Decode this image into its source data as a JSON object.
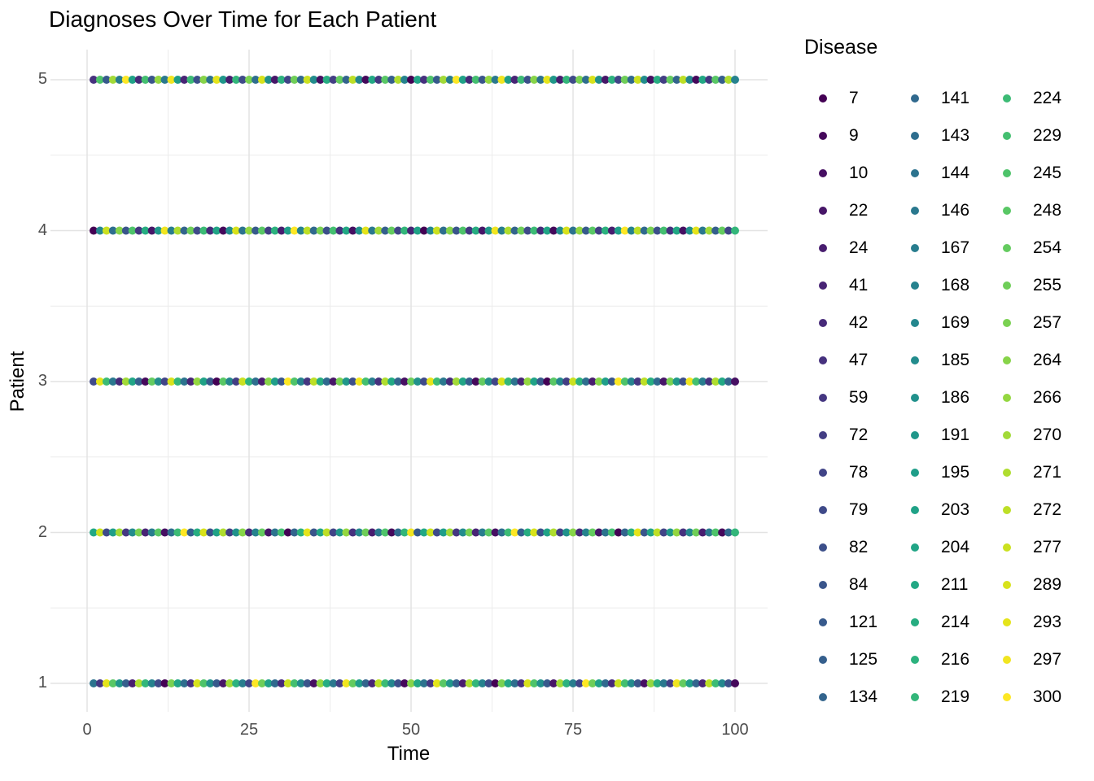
{
  "title": "Diagnoses Over Time for Each Patient",
  "axes": {
    "x": {
      "label": "Time",
      "tick_labels": [
        "0",
        "25",
        "50",
        "75",
        "100"
      ],
      "tick_values": [
        0,
        25,
        50,
        75,
        100
      ],
      "minor": [
        12.5,
        37.5,
        62.5,
        87.5
      ]
    },
    "y": {
      "label": "Patient",
      "tick_labels": [
        "5",
        "4",
        "3",
        "2",
        "1"
      ],
      "tick_values": [
        5,
        4,
        3,
        2,
        1
      ],
      "minor": [
        4.5,
        3.5,
        2.5,
        1.5
      ]
    }
  },
  "legend": {
    "title": "Disease",
    "items": [
      {
        "value": "7",
        "color": "#440154"
      },
      {
        "value": "9",
        "color": "#45085b"
      },
      {
        "value": "10",
        "color": "#460f62"
      },
      {
        "value": "22",
        "color": "#471668"
      },
      {
        "value": "24",
        "color": "#481d6f"
      },
      {
        "value": "41",
        "color": "#482475"
      },
      {
        "value": "42",
        "color": "#472a79"
      },
      {
        "value": "47",
        "color": "#46317e"
      },
      {
        "value": "59",
        "color": "#453781"
      },
      {
        "value": "72",
        "color": "#433e84"
      },
      {
        "value": "78",
        "color": "#414487"
      },
      {
        "value": "79",
        "color": "#3f4a89"
      },
      {
        "value": "82",
        "color": "#3c4f8a"
      },
      {
        "value": "84",
        "color": "#3a558b"
      },
      {
        "value": "121",
        "color": "#375a8c"
      },
      {
        "value": "125",
        "color": "#355f8d"
      },
      {
        "value": "134",
        "color": "#33648d"
      },
      {
        "value": "141",
        "color": "#30698e"
      },
      {
        "value": "143",
        "color": "#2e6e8e"
      },
      {
        "value": "144",
        "color": "#2c738e"
      },
      {
        "value": "146",
        "color": "#2a788e"
      },
      {
        "value": "167",
        "color": "#287d8e"
      },
      {
        "value": "168",
        "color": "#26828e"
      },
      {
        "value": "169",
        "color": "#24878e"
      },
      {
        "value": "185",
        "color": "#238c8d"
      },
      {
        "value": "186",
        "color": "#21918c"
      },
      {
        "value": "191",
        "color": "#20978a"
      },
      {
        "value": "195",
        "color": "#1f9e89"
      },
      {
        "value": "203",
        "color": "#20a287"
      },
      {
        "value": "204",
        "color": "#21a586"
      },
      {
        "value": "211",
        "color": "#22a884"
      },
      {
        "value": "214",
        "color": "#27ad81"
      },
      {
        "value": "216",
        "color": "#2cb27e"
      },
      {
        "value": "219",
        "color": "#33b67a"
      },
      {
        "value": "224",
        "color": "#3cbb75"
      },
      {
        "value": "229",
        "color": "#44bf70"
      },
      {
        "value": "245",
        "color": "#4ec36a"
      },
      {
        "value": "248",
        "color": "#59c765"
      },
      {
        "value": "254",
        "color": "#64cb5f"
      },
      {
        "value": "255",
        "color": "#6fce58"
      },
      {
        "value": "257",
        "color": "#7ad151"
      },
      {
        "value": "264",
        "color": "#87d449"
      },
      {
        "value": "266",
        "color": "#94d740"
      },
      {
        "value": "270",
        "color": "#a2da38"
      },
      {
        "value": "271",
        "color": "#afdd2f"
      },
      {
        "value": "272",
        "color": "#bddf26"
      },
      {
        "value": "277",
        "color": "#cbe120"
      },
      {
        "value": "289",
        "color": "#d8e21b"
      },
      {
        "value": "293",
        "color": "#e5e41b"
      },
      {
        "value": "297",
        "color": "#f1e520"
      },
      {
        "value": "300",
        "color": "#fde725"
      }
    ]
  },
  "chart_data": {
    "type": "scatter",
    "title": "Diagnoses Over Time for Each Patient",
    "xlabel": "Time",
    "ylabel": "Patient",
    "x_range": [
      1,
      100
    ],
    "x_step": 1,
    "x_ticks": [
      0,
      25,
      50,
      75,
      100
    ],
    "y_ticks": [
      1,
      2,
      3,
      4,
      5
    ],
    "xlim": [
      -4,
      105
    ],
    "ylim": [
      0.8,
      5.2
    ],
    "grid": true,
    "grid_color_major": "#e3e3e3",
    "grid_color_minor": "#ececec",
    "axis_text_color": "#4d4d4d",
    "point_radius": 5,
    "color_scale": "viridis-discrete",
    "legend_position": "right",
    "series": [
      {
        "patient": 5,
        "diseases": [
          47,
          245,
          121,
          270,
          167,
          300,
          203,
          42,
          229,
          84,
          266,
          146,
          297,
          195,
          41,
          224,
          82,
          264,
          144,
          293,
          191,
          24,
          219,
          79,
          257,
          143,
          289,
          186,
          22,
          216,
          78,
          255,
          141,
          277,
          185,
          10,
          214,
          72,
          254,
          134,
          272,
          169,
          9,
          211,
          59,
          248,
          125,
          271,
          168,
          7,
          204,
          47,
          245,
          121,
          270,
          167,
          300,
          203,
          42,
          229,
          84,
          266,
          146,
          297,
          195,
          41,
          224,
          82,
          264,
          144,
          293,
          191,
          24,
          219,
          79,
          257,
          143,
          289,
          186,
          22,
          216,
          78,
          255,
          141,
          277,
          185,
          10,
          214,
          72,
          254,
          134,
          272,
          169,
          9,
          211,
          59,
          248,
          125,
          271,
          168
        ]
      },
      {
        "patient": 4,
        "diseases": [
          7,
          169,
          277,
          143,
          264,
          84,
          245,
          59,
          214,
          22,
          191,
          297,
          167,
          271,
          134,
          255,
          79,
          224,
          42,
          204,
          9,
          185,
          289,
          144,
          266,
          121,
          248,
          72,
          216,
          24,
          195,
          300,
          168,
          272,
          141,
          257,
          82,
          229,
          47,
          211,
          10,
          186,
          293,
          146,
          270,
          125,
          254,
          78,
          219,
          41,
          203,
          7,
          169,
          277,
          143,
          264,
          84,
          245,
          59,
          214,
          22,
          191,
          297,
          167,
          271,
          134,
          255,
          79,
          224,
          42,
          204,
          9,
          185,
          289,
          144,
          266,
          121,
          248,
          72,
          216,
          24,
          195,
          300,
          168,
          272,
          141,
          257,
          82,
          229,
          47,
          211,
          10,
          186,
          293,
          146,
          270,
          125,
          254,
          78,
          219
        ]
      },
      {
        "patient": 3,
        "diseases": [
          79,
          293,
          224,
          146,
          42,
          270,
          204,
          125,
          9,
          254,
          185,
          78,
          289,
          219,
          144,
          41,
          266,
          203,
          121,
          7,
          248,
          169,
          72,
          277,
          216,
          143,
          24,
          264,
          195,
          84,
          300,
          245,
          168,
          59,
          272,
          214,
          141,
          22,
          257,
          191,
          82,
          297,
          229,
          167,
          47,
          271,
          211,
          134,
          10,
          255,
          186,
          79,
          293,
          224,
          146,
          42,
          270,
          204,
          125,
          9,
          254,
          185,
          78,
          289,
          219,
          144,
          41,
          266,
          203,
          121,
          7,
          248,
          169,
          72,
          277,
          216,
          143,
          24,
          264,
          195,
          84,
          300,
          245,
          168,
          59,
          272,
          214,
          141,
          22,
          257,
          191,
          82,
          297,
          229,
          167,
          47,
          271,
          211,
          134,
          10
        ]
      },
      {
        "patient": 2,
        "diseases": [
          211,
          277,
          79,
          195,
          270,
          59,
          185,
          257,
          41,
          167,
          248,
          10,
          143,
          224,
          300,
          125,
          214,
          289,
          82,
          203,
          271,
          72,
          186,
          264,
          42,
          168,
          254,
          22,
          144,
          229,
          7,
          134,
          216,
          293,
          84,
          204,
          272,
          78,
          191,
          266,
          47,
          169,
          255,
          24,
          146,
          245,
          9,
          141,
          219,
          297,
          121,
          211,
          277,
          79,
          195,
          270,
          59,
          185,
          257,
          41,
          167,
          248,
          10,
          143,
          224,
          300,
          125,
          214,
          289,
          82,
          203,
          271,
          72,
          186,
          264,
          42,
          168,
          254,
          22,
          144,
          229,
          7,
          134,
          216,
          293,
          84,
          204,
          272,
          78,
          191,
          266,
          47,
          169,
          255,
          24,
          146,
          245,
          9,
          141,
          219
        ]
      },
      {
        "patient": 1,
        "diseases": [
          144,
          59,
          293,
          248,
          191,
          125,
          24,
          271,
          219,
          168,
          79,
          7,
          257,
          204,
          143,
          47,
          289,
          245,
          186,
          121,
          22,
          270,
          216,
          167,
          78,
          300,
          255,
          203,
          141,
          42,
          277,
          229,
          185,
          84,
          10,
          266,
          214,
          146,
          72,
          297,
          254,
          195,
          134,
          41,
          272,
          224,
          169,
          82,
          9,
          264,
          211,
          144,
          59,
          293,
          248,
          191,
          125,
          24,
          271,
          219,
          168,
          79,
          7,
          257,
          204,
          143,
          47,
          289,
          245,
          186,
          121,
          22,
          270,
          216,
          167,
          78,
          300,
          255,
          203,
          141,
          42,
          277,
          229,
          185,
          84,
          10,
          266,
          214,
          146,
          72,
          297,
          254,
          195,
          134,
          41,
          272,
          224,
          169,
          82,
          9
        ]
      }
    ]
  }
}
